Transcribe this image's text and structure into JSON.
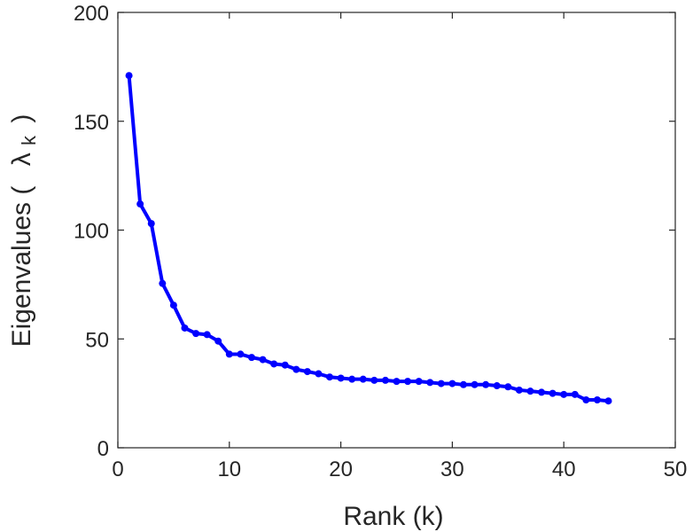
{
  "chart_data": {
    "type": "line",
    "xlabel": "Rank (k)",
    "ylabel_main": "Eigenvalues (",
    "ylabel_lambda": "λ",
    "ylabel_sub": "k",
    "ylabel_close": ")",
    "xlim": [
      0,
      50
    ],
    "ylim": [
      0,
      200
    ],
    "xticks": [
      0,
      10,
      20,
      30,
      40,
      50
    ],
    "yticks": [
      0,
      50,
      100,
      150,
      200
    ],
    "grid": false,
    "series": [
      {
        "color": "#0000ff",
        "x": [
          1,
          2,
          3,
          4,
          5,
          6,
          7,
          8,
          9,
          10,
          11,
          12,
          13,
          14,
          15,
          16,
          17,
          18,
          19,
          20,
          21,
          22,
          23,
          24,
          25,
          26,
          27,
          28,
          29,
          30,
          31,
          32,
          33,
          34,
          35,
          36,
          37,
          38,
          39,
          40,
          41,
          42,
          43,
          44
        ],
        "y": [
          171,
          112,
          103,
          75.5,
          65.5,
          55,
          52.5,
          52,
          49,
          43,
          43,
          41.5,
          40.5,
          38.5,
          38,
          36,
          35,
          34,
          32.5,
          32,
          31.5,
          31.5,
          31,
          31,
          30.5,
          30.5,
          30.5,
          30,
          29.5,
          29.5,
          29,
          29,
          29,
          28.5,
          28,
          26.5,
          26,
          25.5,
          25,
          24.5,
          24.5,
          22,
          22,
          21.5
        ]
      }
    ]
  }
}
